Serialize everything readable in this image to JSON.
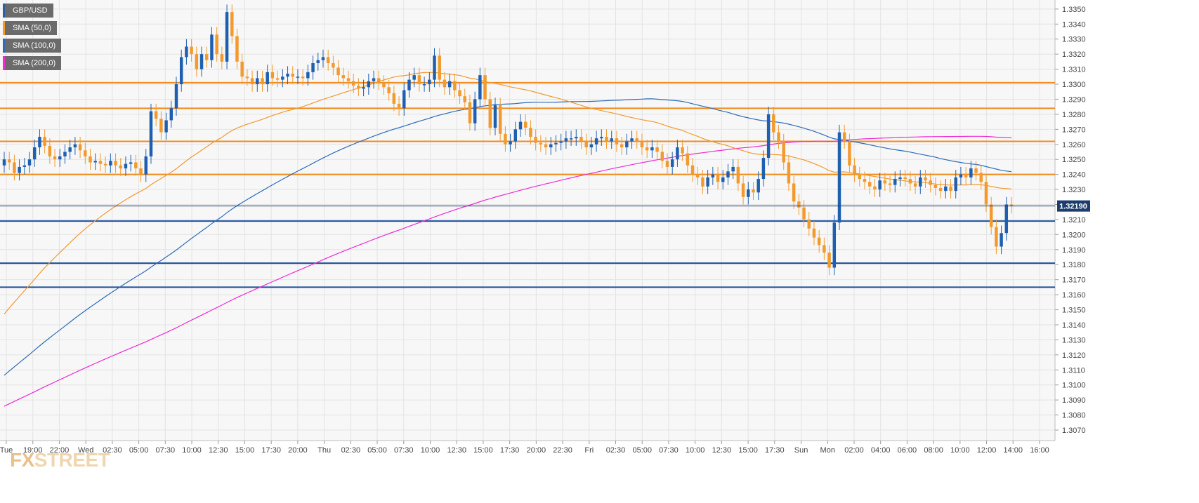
{
  "colors": {
    "background": "#f7f7f7",
    "grid": "#e3e3e3",
    "bull": "#1f5fb0",
    "bear": "#f29a2e",
    "sma50": "#f29a2e",
    "sma100": "#2c6cb8",
    "sma200": "#ee2bd6",
    "resistance": "#f08a1c",
    "support": "#1b4e9c",
    "price_tag": "#1c3d6e",
    "axis_text": "#444444"
  },
  "legend": [
    {
      "label": "GBP/USD",
      "color": "#2c5fa8"
    },
    {
      "label": "SMA (50,0)",
      "color": "#f29a2e"
    },
    {
      "label": "SMA (100,0)",
      "color": "#2c6cb8"
    },
    {
      "label": "SMA (200,0)",
      "color": "#ee2bd6"
    }
  ],
  "watermark": {
    "fx": "FX",
    "street": "STREET"
  },
  "chart_data": {
    "type": "candlestick",
    "symbol": "GBP/USD",
    "interval_minutes": 30,
    "ylim": [
      1.3063,
      1.3356
    ],
    "y_ticks": [
      "1.3070",
      "1.3080",
      "1.3090",
      "1.3100",
      "1.3110",
      "1.3120",
      "1.3130",
      "1.3140",
      "1.3150",
      "1.3160",
      "1.3170",
      "1.3180",
      "1.3190",
      "1.3200",
      "1.3210",
      "1.3220",
      "1.3230",
      "1.3240",
      "1.3250",
      "1.3260",
      "1.3270",
      "1.3280",
      "1.3290",
      "1.3300",
      "1.3310",
      "1.3320",
      "1.3330",
      "1.3340",
      "1.3350"
    ],
    "x_ticks": [
      "Tue",
      "19:00",
      "22:00",
      "Wed",
      "02:30",
      "05:00",
      "07:30",
      "10:00",
      "12:30",
      "15:00",
      "17:30",
      "20:00",
      "Thu",
      "02:30",
      "05:00",
      "07:30",
      "10:00",
      "12:30",
      "15:00",
      "17:30",
      "20:00",
      "22:30",
      "Fri",
      "02:30",
      "05:00",
      "07:30",
      "10:00",
      "12:30",
      "15:00",
      "17:30",
      "Sun",
      "Mon",
      "02:00",
      "04:00",
      "06:00",
      "08:00",
      "10:00",
      "12:00",
      "14:00",
      "16:00"
    ],
    "current_price": "1.32190",
    "resistance_levels": [
      1.3301,
      1.3284,
      1.3262,
      1.324
    ],
    "support_levels": [
      1.3209,
      1.3181,
      1.3165
    ],
    "candles_close": [
      1.325,
      1.3248,
      1.3241,
      1.3245,
      1.3246,
      1.325,
      1.3258,
      1.3265,
      1.3259,
      1.3252,
      1.325,
      1.3252,
      1.3255,
      1.3258,
      1.326,
      1.3256,
      1.3252,
      1.3248,
      1.3249,
      1.3247,
      1.3246,
      1.3249,
      1.3246,
      1.3244,
      1.3247,
      1.3248,
      1.3244,
      1.324,
      1.3252,
      1.3282,
      1.3277,
      1.3268,
      1.3276,
      1.3284,
      1.33,
      1.3318,
      1.3325,
      1.332,
      1.331,
      1.332,
      1.3316,
      1.3333,
      1.332,
      1.3315,
      1.3348,
      1.3332,
      1.3315,
      1.3305,
      1.3304,
      1.33,
      1.3304,
      1.33,
      1.3308,
      1.3304,
      1.3303,
      1.3305,
      1.3307,
      1.3305,
      1.3305,
      1.3304,
      1.3308,
      1.3314,
      1.3316,
      1.3318,
      1.3314,
      1.3311,
      1.3306,
      1.3304,
      1.3302,
      1.3299,
      1.3297,
      1.3298,
      1.3302,
      1.3304,
      1.3301,
      1.3298,
      1.3294,
      1.3287,
      1.3284,
      1.3296,
      1.3303,
      1.3306,
      1.33,
      1.33,
      1.3303,
      1.3319,
      1.3303,
      1.3298,
      1.3302,
      1.3296,
      1.3292,
      1.3288,
      1.3274,
      1.329,
      1.3306,
      1.329,
      1.3271,
      1.3286,
      1.3267,
      1.326,
      1.3262,
      1.327,
      1.3275,
      1.3271,
      1.3265,
      1.3261,
      1.326,
      1.3258,
      1.326,
      1.3261,
      1.3262,
      1.3264,
      1.3264,
      1.3265,
      1.3262,
      1.3258,
      1.326,
      1.3264,
      1.3265,
      1.3262,
      1.3264,
      1.326,
      1.3258,
      1.3262,
      1.3264,
      1.3262,
      1.3258,
      1.3256,
      1.3258,
      1.3255,
      1.3249,
      1.3245,
      1.325,
      1.3258,
      1.3254,
      1.3246,
      1.324,
      1.3238,
      1.3232,
      1.3238,
      1.324,
      1.3235,
      1.3238,
      1.3242,
      1.3245,
      1.3234,
      1.3225,
      1.323,
      1.3228,
      1.3237,
      1.3251,
      1.328,
      1.3268,
      1.3262,
      1.3248,
      1.3234,
      1.3222,
      1.3218,
      1.321,
      1.3204,
      1.3198,
      1.3193,
      1.3188,
      1.3178,
      1.3208,
      1.3268,
      1.3262,
      1.3246,
      1.324,
      1.3237,
      1.3235,
      1.3232,
      1.323,
      1.3236,
      1.3234,
      1.3233,
      1.3237,
      1.3238,
      1.3237,
      1.3234,
      1.3232,
      1.3238,
      1.3236,
      1.3233,
      1.3231,
      1.3229,
      1.3232,
      1.3229,
      1.3238,
      1.324,
      1.3238,
      1.3244,
      1.3241,
      1.3235,
      1.322,
      1.3205,
      1.3192,
      1.3201,
      1.322,
      1.3219
    ]
  }
}
